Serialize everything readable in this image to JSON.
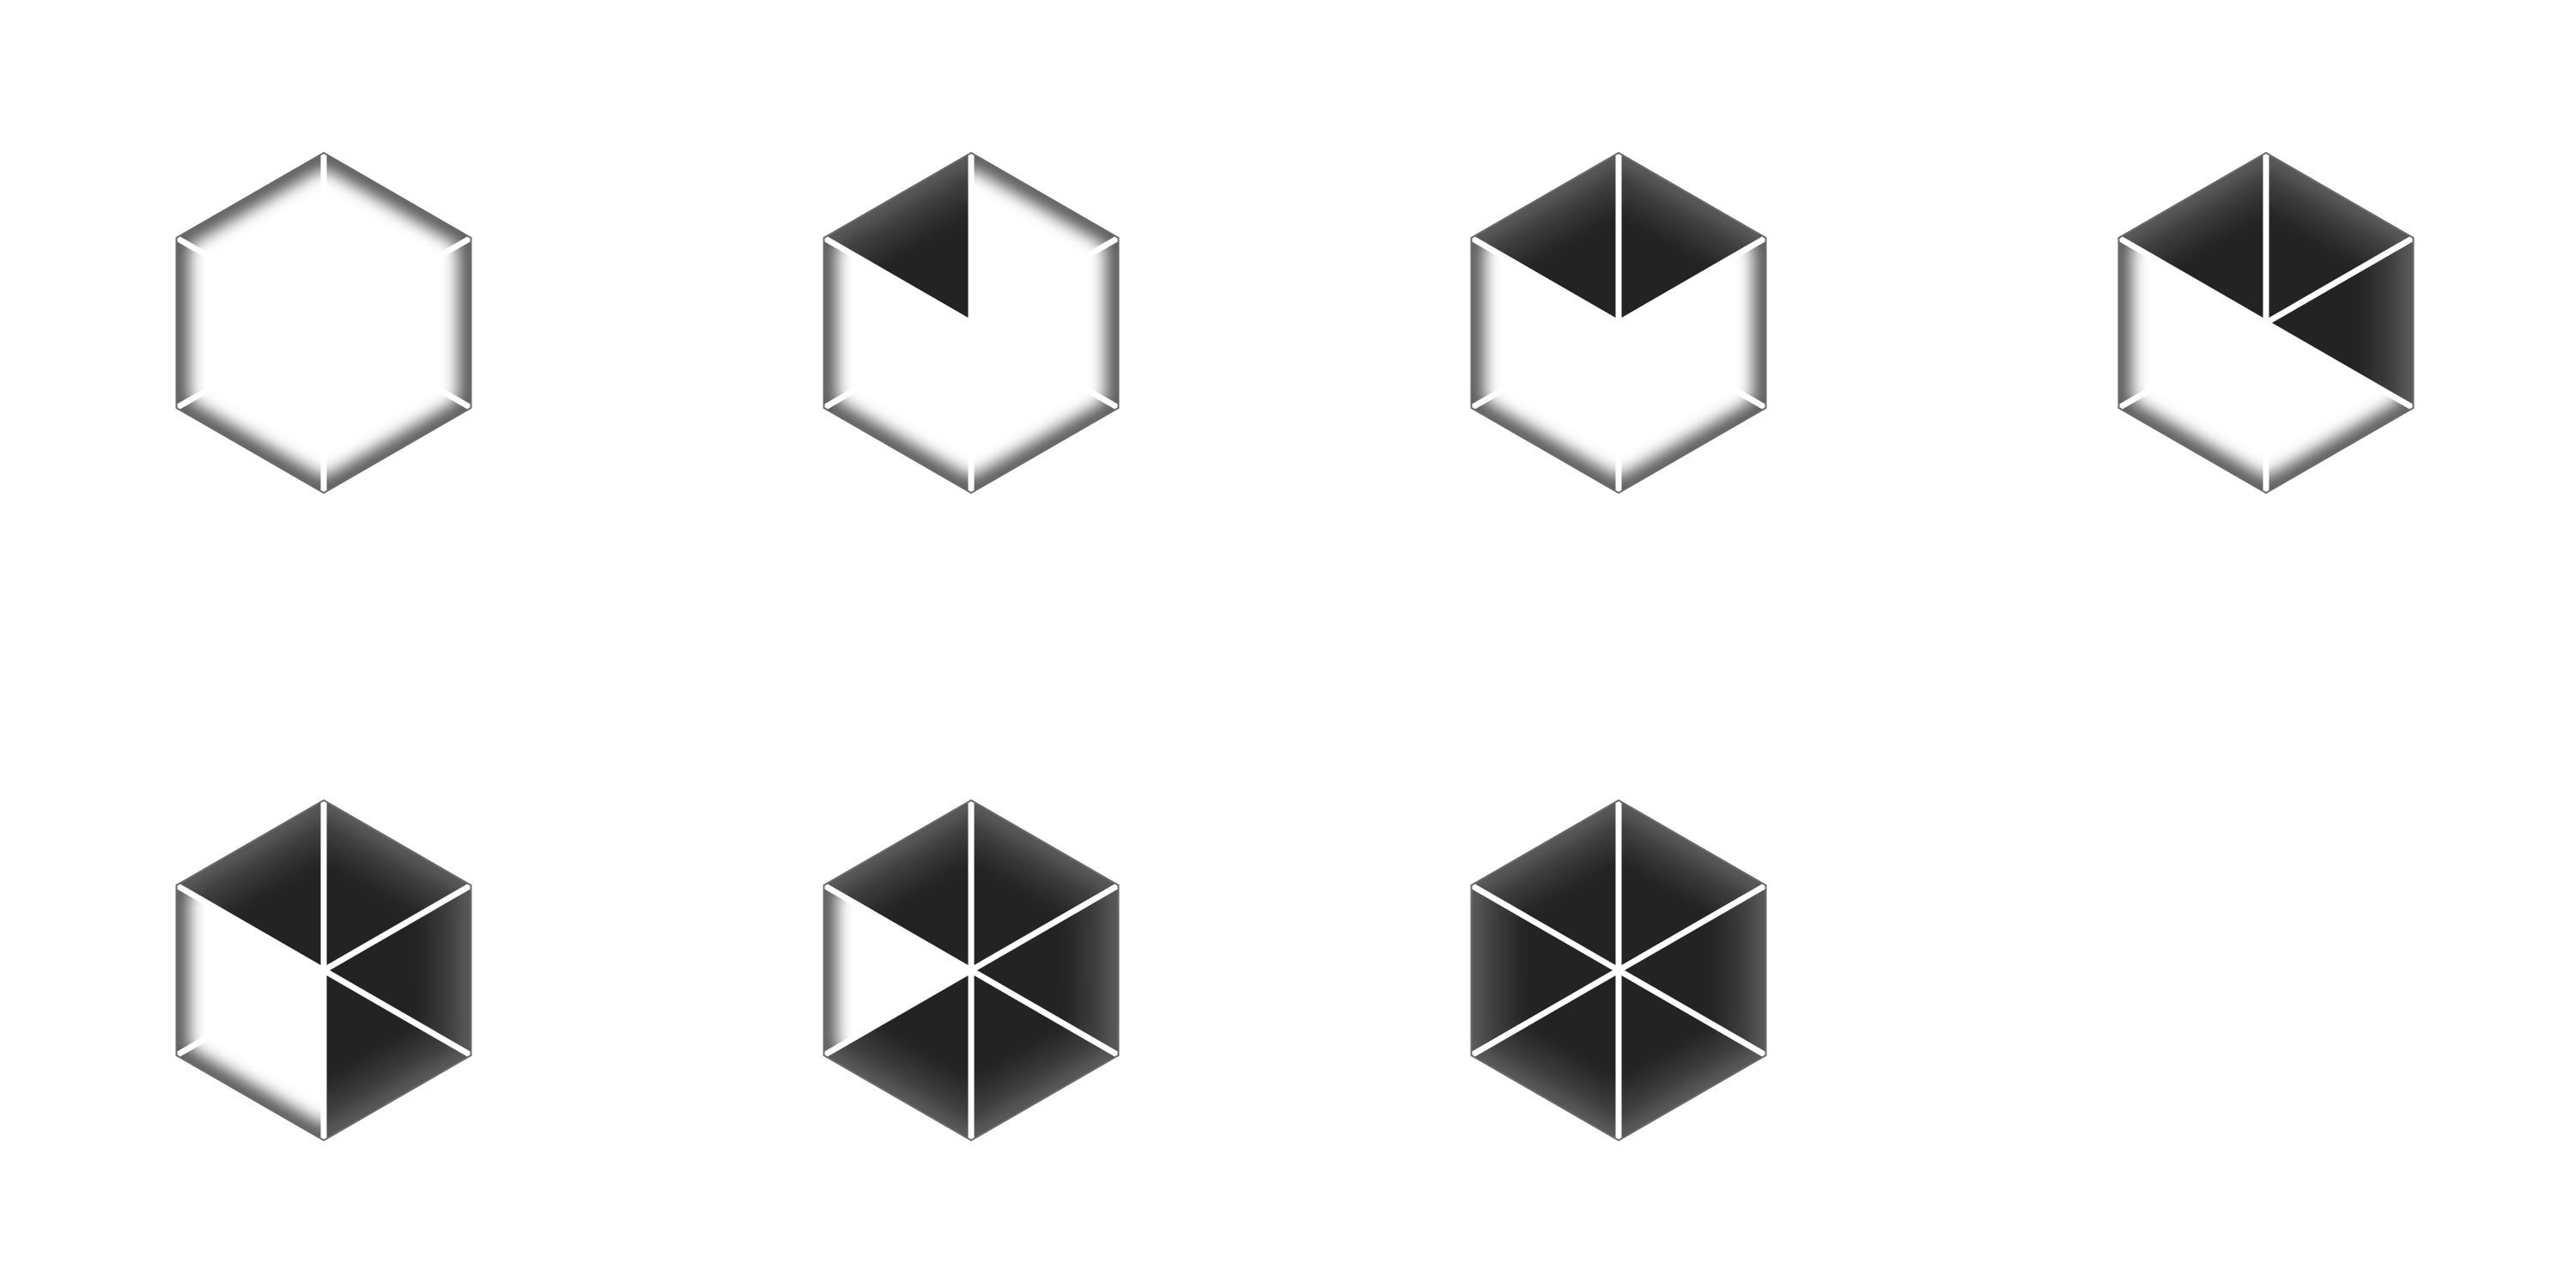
{
  "colors": {
    "background": "#ffffff",
    "filled": "#232323",
    "empty": "#ffffff",
    "rim_shadow": "#5a5a5a",
    "divider": "#ffffff"
  },
  "wedge_order": [
    "top-left",
    "top-right",
    "right",
    "bottom-right",
    "bottom-left",
    "left"
  ],
  "hexagons": [
    {
      "id": 0,
      "filled_wedges": 0
    },
    {
      "id": 1,
      "filled_wedges": 1
    },
    {
      "id": 2,
      "filled_wedges": 2
    },
    {
      "id": 3,
      "filled_wedges": 3
    },
    {
      "id": 4,
      "filled_wedges": 4
    },
    {
      "id": 5,
      "filled_wedges": 5
    },
    {
      "id": 6,
      "filled_wedges": 6
    }
  ]
}
